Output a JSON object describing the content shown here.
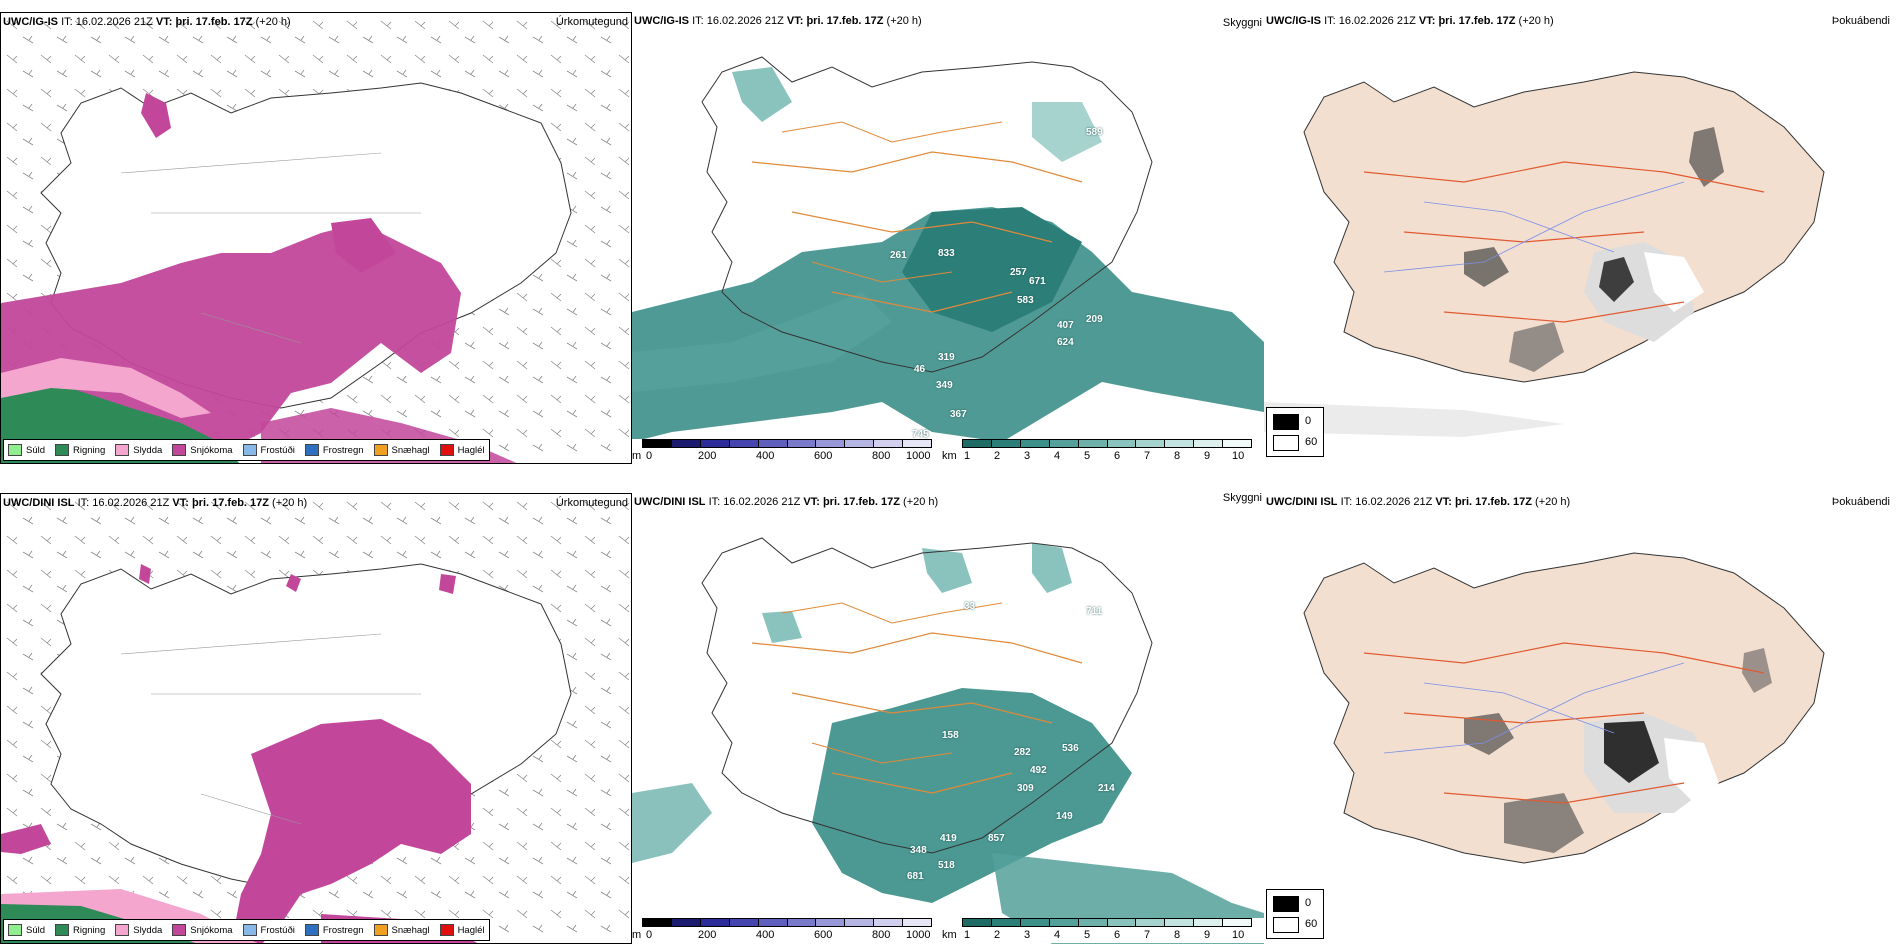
{
  "rows": [
    {
      "model": "UWC/IG-IS",
      "it_label": "IT:",
      "it_value": "16.02.2026 21Z",
      "vt_label": "VT:",
      "vt_value": "þri. 17.feb. 17Z",
      "lead": "(+20 h)",
      "precip_title": "Úrkomutegund",
      "cloud_title": "Skyggni",
      "fog_title": "Þokuábendi",
      "visibility_numbers": [
        "589",
        "261",
        "833",
        "257",
        "671",
        "583",
        "407",
        "209",
        "624",
        "319",
        "46",
        "349",
        "745",
        "367"
      ]
    },
    {
      "model": "UWC/DINI ISL",
      "it_label": "IT:",
      "it_value": "16.02.2026 21Z",
      "vt_label": "VT:",
      "vt_value": "þri. 17.feb. 17Z",
      "lead": "(+20 h)",
      "precip_title": "Úrkomutegund",
      "cloud_title": "Skyggni",
      "fog_title": "Þokuábendi",
      "visibility_numbers": [
        "33",
        "711",
        "158",
        "282",
        "536",
        "492",
        "309",
        "214",
        "149",
        "419",
        "857",
        "348",
        "518",
        "681"
      ]
    }
  ],
  "precip_legend": [
    {
      "label": "Súld",
      "color": "#90ee90"
    },
    {
      "label": "Rigning",
      "color": "#2e8b57"
    },
    {
      "label": "Slydda",
      "color": "#f4a6cf"
    },
    {
      "label": "Snjókoma",
      "color": "#c2479a"
    },
    {
      "label": "Frostúði",
      "color": "#87b8e8"
    },
    {
      "label": "Frostregn",
      "color": "#2f6fc0"
    },
    {
      "label": "Snæhagl",
      "color": "#f0a020"
    },
    {
      "label": "Haglél",
      "color": "#e01010"
    }
  ],
  "height_scale": {
    "unit": "m",
    "ticks": [
      "0",
      "200",
      "400",
      "600",
      "800",
      "1000"
    ],
    "colors": [
      "#000000",
      "#1a1a6e",
      "#2b2b9a",
      "#4545b0",
      "#5f5fbe",
      "#7a7acb",
      "#9898d8",
      "#b5b5e4",
      "#d0d0ee",
      "#e6e6f6"
    ]
  },
  "visibility_scale": {
    "unit": "km",
    "ticks": [
      "1",
      "2",
      "3",
      "4",
      "5",
      "6",
      "7",
      "8",
      "9",
      "10"
    ],
    "colors": [
      "#1f6b66",
      "#2c7e78",
      "#3d8f89",
      "#55a09a",
      "#6eb1ab",
      "#8ac2bd",
      "#a6d3ce",
      "#c2e3df",
      "#dcf0ee",
      "#f2faf9"
    ]
  },
  "fog_legend": {
    "items": [
      {
        "label": "0",
        "color": "#000000"
      },
      {
        "label": "60",
        "color": "#ffffff"
      }
    ]
  }
}
